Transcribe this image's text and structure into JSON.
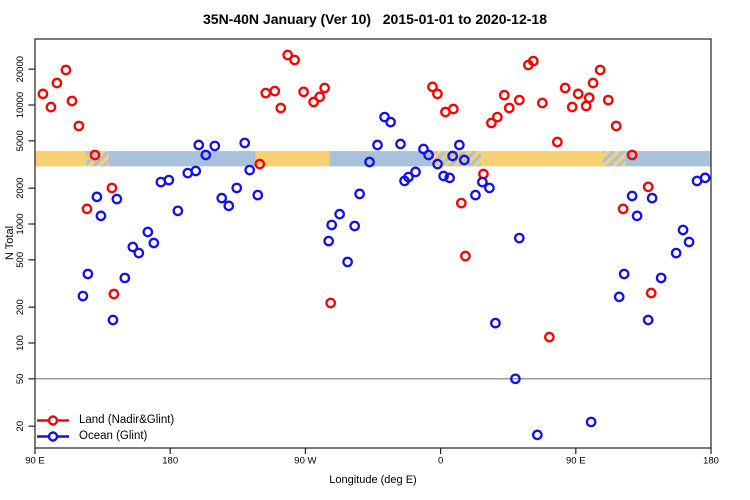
{
  "chart_data": {
    "type": "scatter",
    "title": "35N-40N January (Ver 10)   2015-01-01 to 2020-12-18",
    "xlabel": "Longitude (deg E)",
    "ylabel": "N Total",
    "x_axis": {
      "lim": [
        90,
        540
      ],
      "ticks": [
        {
          "v": 90,
          "label": "90 E"
        },
        {
          "v": 180,
          "label": "180"
        },
        {
          "v": 270,
          "label": "90 W"
        },
        {
          "v": 360,
          "label": "0"
        },
        {
          "v": 450,
          "label": "90 E"
        },
        {
          "v": 540,
          "label": "180"
        }
      ]
    },
    "y_axis": {
      "scale": "log",
      "lim": [
        13,
        36000
      ],
      "ticks": [
        20000,
        10000,
        5000,
        2000,
        1000,
        500,
        200,
        100,
        50,
        20
      ]
    },
    "reference_line_y": 50,
    "grid": false,
    "legend_position": "bottom-left",
    "series": [
      {
        "name": "Land (Nadir&Glint)",
        "color": "#FF0000",
        "points": [
          [
            110.6,
            19700
          ],
          [
            104.6,
            15300
          ],
          [
            95.3,
            12400
          ],
          [
            100.6,
            9600
          ],
          [
            114.6,
            10800
          ],
          [
            119.2,
            6670
          ],
          [
            129.9,
            3800
          ],
          [
            141.2,
            2010
          ],
          [
            124.6,
            1340
          ],
          [
            142.5,
            258
          ],
          [
            258.2,
            26300
          ],
          [
            262.8,
            23900
          ],
          [
            243.6,
            12600
          ],
          [
            249.6,
            13100
          ],
          [
            253.6,
            9440
          ],
          [
            268.8,
            12900
          ],
          [
            275.5,
            10600
          ],
          [
            279.5,
            11700
          ],
          [
            282.8,
            13900
          ],
          [
            239.6,
            3190
          ],
          [
            286.8,
            217
          ],
          [
            354.6,
            14200
          ],
          [
            357.9,
            12400
          ],
          [
            363.2,
            8730
          ],
          [
            368.5,
            9250
          ],
          [
            418.4,
            21700
          ],
          [
            421.7,
            23400
          ],
          [
            402.4,
            12100
          ],
          [
            405.7,
            9440
          ],
          [
            412.4,
            11000
          ],
          [
            393.8,
            7060
          ],
          [
            397.8,
            7920
          ],
          [
            388.5,
            2630
          ],
          [
            373.8,
            1500
          ],
          [
            376.5,
            538
          ],
          [
            432.4,
            112
          ],
          [
            466.2,
            19700
          ],
          [
            461.5,
            15300
          ],
          [
            442.9,
            13900
          ],
          [
            451.6,
            12400
          ],
          [
            458.9,
            11500
          ],
          [
            447.6,
            9620
          ],
          [
            456.9,
            9810
          ],
          [
            471.6,
            11000
          ],
          [
            427.7,
            10400
          ],
          [
            476.9,
            6670
          ],
          [
            437.7,
            4890
          ],
          [
            487.5,
            3800
          ],
          [
            498.2,
            2050
          ],
          [
            481.5,
            1340
          ],
          [
            500.2,
            263
          ]
        ]
      },
      {
        "name": "Ocean (Glint)",
        "color": "#1111EE",
        "points": [
          [
            199.0,
            4610
          ],
          [
            203.7,
            3800
          ],
          [
            191.7,
            2680
          ],
          [
            197.0,
            2790
          ],
          [
            173.8,
            2250
          ],
          [
            179.1,
            2340
          ],
          [
            131.2,
            1690
          ],
          [
            144.5,
            1620
          ],
          [
            133.9,
            1170
          ],
          [
            185.1,
            1290
          ],
          [
            165.1,
            857
          ],
          [
            169.1,
            692
          ],
          [
            155.1,
            641
          ],
          [
            159.1,
            570
          ],
          [
            125.2,
            380
          ],
          [
            149.8,
            352
          ],
          [
            121.9,
            248
          ],
          [
            141.9,
            156
          ],
          [
            209.7,
            4530
          ],
          [
            229.6,
            4800
          ],
          [
            232.9,
            2840
          ],
          [
            224.3,
            2010
          ],
          [
            214.3,
            1650
          ],
          [
            219.0,
            1420
          ],
          [
            238.3,
            1750
          ],
          [
            306.1,
            1790
          ],
          [
            292.8,
            1210
          ],
          [
            287.5,
            982
          ],
          [
            302.8,
            962
          ],
          [
            285.5,
            719
          ],
          [
            298.1,
            480
          ],
          [
            322.7,
            7920
          ],
          [
            326.7,
            7190
          ],
          [
            318.0,
            4610
          ],
          [
            333.3,
            4700
          ],
          [
            348.6,
            4270
          ],
          [
            352.0,
            3800
          ],
          [
            358.0,
            3190
          ],
          [
            362.0,
            2530
          ],
          [
            366.0,
            2440
          ],
          [
            368.0,
            3730
          ],
          [
            372.5,
            4610
          ],
          [
            375.8,
            3450
          ],
          [
            343.3,
            2740
          ],
          [
            338.6,
            2480
          ],
          [
            336.0,
            2300
          ],
          [
            312.7,
            3320
          ],
          [
            387.8,
            2250
          ],
          [
            392.5,
            2010
          ],
          [
            383.2,
            1750
          ],
          [
            412.4,
            762
          ],
          [
            396.5,
            147
          ],
          [
            409.8,
            50
          ],
          [
            424.4,
            16.9
          ],
          [
            530.7,
            2300
          ],
          [
            536.1,
            2440
          ],
          [
            487.5,
            1720
          ],
          [
            500.8,
            1650
          ],
          [
            490.8,
            1170
          ],
          [
            521.4,
            891
          ],
          [
            525.4,
            706
          ],
          [
            516.8,
            570
          ],
          [
            482.2,
            380
          ],
          [
            506.8,
            352
          ],
          [
            478.9,
            244
          ],
          [
            498.2,
            156
          ],
          [
            460.2,
            21.7
          ]
        ]
      }
    ],
    "surface_strip": {
      "y_range": [
        3050,
        4100
      ],
      "land_color": "#F8D073",
      "ocean_color": "#A8C2DE",
      "segments": [
        {
          "from": 90,
          "to": 124,
          "type": "land"
        },
        {
          "from": 124,
          "to": 139,
          "type": "mixed"
        },
        {
          "from": 139,
          "to": 237,
          "type": "ocean"
        },
        {
          "from": 237,
          "to": 286,
          "type": "land"
        },
        {
          "from": 286,
          "to": 354,
          "type": "ocean"
        },
        {
          "from": 354,
          "to": 387,
          "type": "mixed"
        },
        {
          "from": 387,
          "to": 468,
          "type": "land"
        },
        {
          "from": 468,
          "to": 483,
          "type": "mixed"
        },
        {
          "from": 483,
          "to": 540,
          "type": "ocean"
        }
      ]
    },
    "colors": {
      "frame": "#222222",
      "reference_line": "#7a7a7a",
      "tick_text": "#000000"
    }
  }
}
